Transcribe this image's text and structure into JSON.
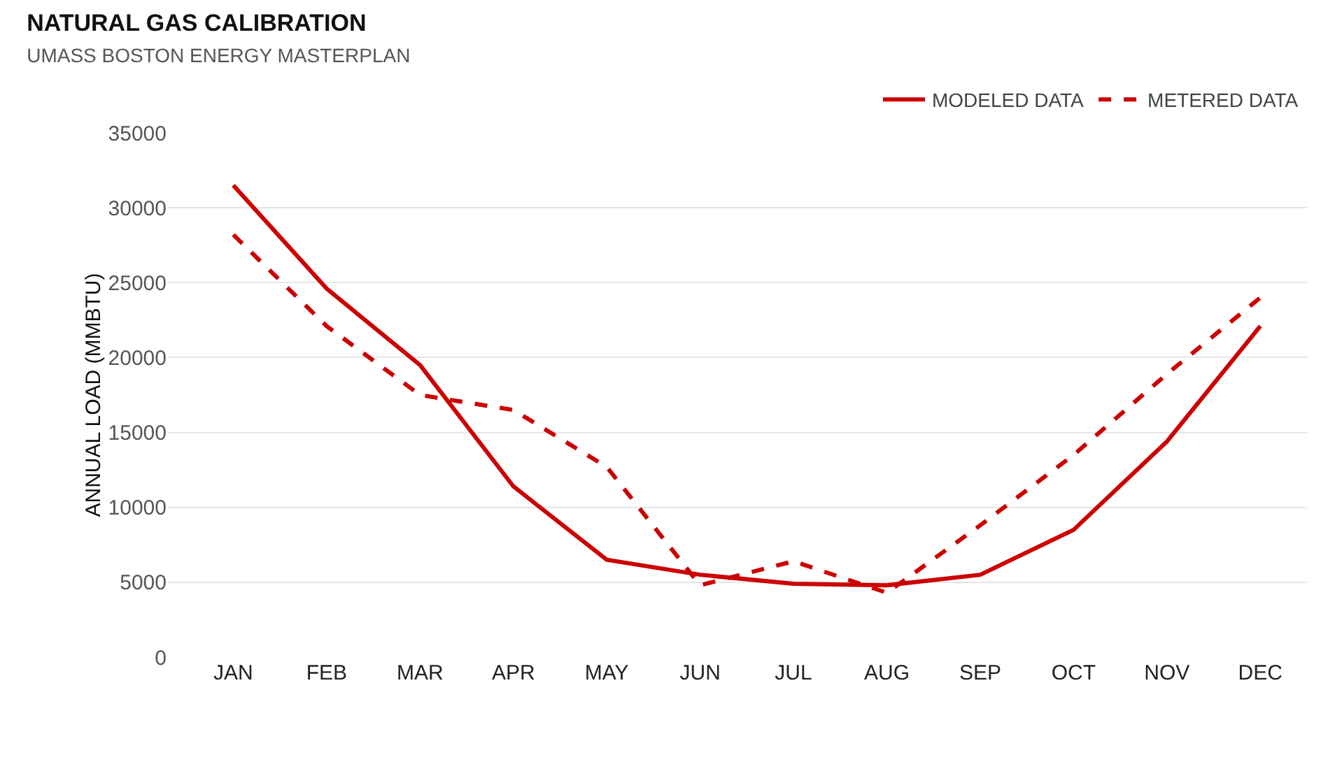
{
  "chart_data": {
    "type": "line",
    "title": "NATURAL GAS CALIBRATION",
    "subtitle": "UMASS BOSTON ENERGY MASTERPLAN",
    "ylabel": "ANNUAL LOAD (MMBTU)",
    "categories": [
      "JAN",
      "FEB",
      "MAR",
      "APR",
      "MAY",
      "JUN",
      "JUL",
      "AUG",
      "SEP",
      "OCT",
      "NOV",
      "DEC"
    ],
    "series": [
      {
        "name": "MODELED DATA",
        "color": "#cc0000",
        "line_style": "solid",
        "values": [
          31500,
          24600,
          19500,
          11400,
          6500,
          5500,
          4900,
          4800,
          5500,
          8500,
          14400,
          22100
        ]
      },
      {
        "name": "METERED DATA",
        "color": "#cc0000",
        "line_style": "dashed",
        "values": [
          28200,
          22100,
          17500,
          16500,
          12700,
          4800,
          6400,
          4300,
          8800,
          13500,
          18900,
          24000
        ]
      }
    ],
    "ylim": [
      0,
      35000
    ],
    "yticks": [
      0,
      5000,
      10000,
      15000,
      20000,
      25000,
      30000,
      35000
    ],
    "grid": "y",
    "legend": "top right",
    "marker": "none"
  }
}
